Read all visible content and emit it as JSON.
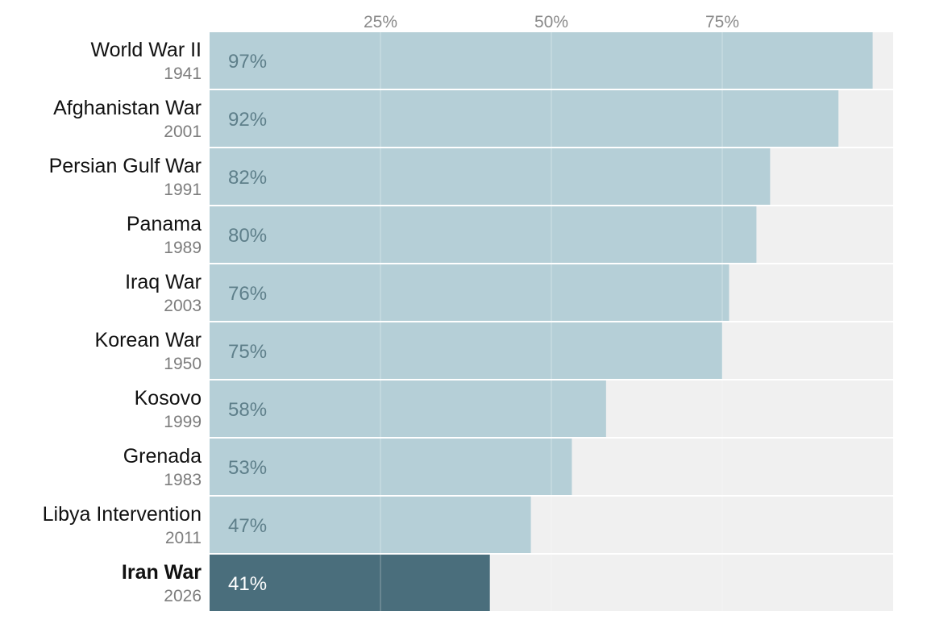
{
  "chart_data": {
    "type": "bar",
    "orientation": "horizontal",
    "title": "",
    "xlabel": "",
    "ylabel": "",
    "xlim": [
      0,
      100
    ],
    "ticks": [
      {
        "value": 25,
        "label": "25%"
      },
      {
        "value": 50,
        "label": "50%"
      },
      {
        "value": 75,
        "label": "75%"
      }
    ],
    "categories": [
      {
        "name": "World War II",
        "year": "1941",
        "value": 97,
        "label": "97%",
        "highlight": false
      },
      {
        "name": "Afghanistan War",
        "year": "2001",
        "value": 92,
        "label": "92%",
        "highlight": false
      },
      {
        "name": "Persian Gulf War",
        "year": "1991",
        "value": 82,
        "label": "82%",
        "highlight": false
      },
      {
        "name": "Panama",
        "year": "1989",
        "value": 80,
        "label": "80%",
        "highlight": false
      },
      {
        "name": "Iraq War",
        "year": "2003",
        "value": 76,
        "label": "76%",
        "highlight": false
      },
      {
        "name": "Korean War",
        "year": "1950",
        "value": 75,
        "label": "75%",
        "highlight": false
      },
      {
        "name": "Kosovo",
        "year": "1999",
        "value": 58,
        "label": "58%",
        "highlight": false
      },
      {
        "name": "Grenada",
        "year": "1983",
        "value": 53,
        "label": "53%",
        "highlight": false
      },
      {
        "name": "Libya Intervention",
        "year": "2011",
        "value": 47,
        "label": "47%",
        "highlight": false
      },
      {
        "name": "Iran War",
        "year": "2026",
        "value": 41,
        "label": "41%",
        "highlight": true
      }
    ],
    "colors": {
      "track": "#f0f0f0",
      "bar": "#b5cfd7",
      "bar_highlight": "#4a6e7c",
      "value_text": "#5e7f8a",
      "value_text_highlight": "#ffffff",
      "gridline": "#ffffff"
    }
  }
}
